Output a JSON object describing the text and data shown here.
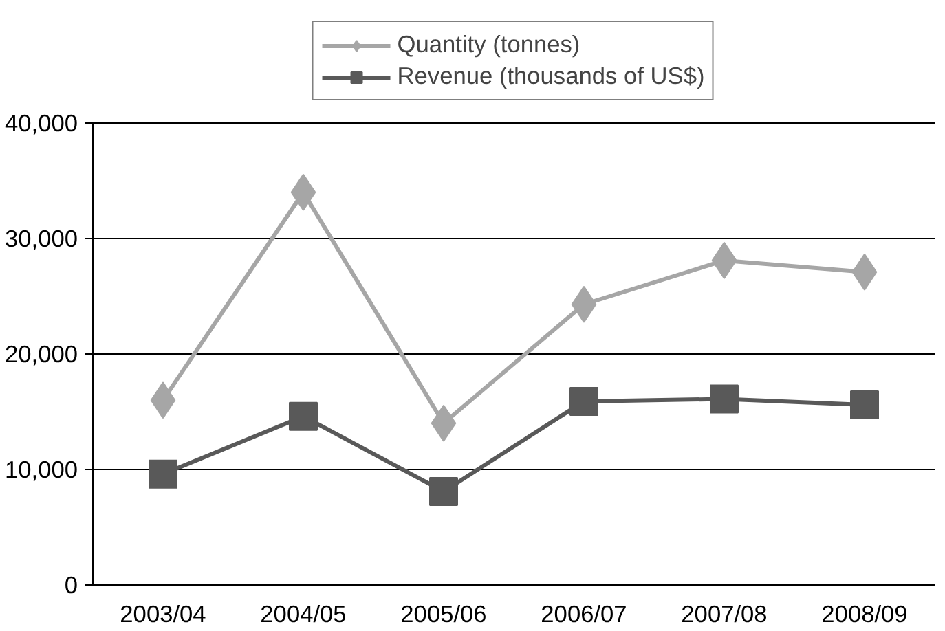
{
  "chart_data": {
    "type": "line",
    "categories": [
      "2003/04",
      "2004/05",
      "2005/06",
      "2006/07",
      "2007/08",
      "2008/09"
    ],
    "series": [
      {
        "name": "Quantity (tonnes)",
        "color": "#a6a6a6",
        "marker": "diamond",
        "values": [
          16000,
          34000,
          14000,
          24300,
          28100,
          27100
        ]
      },
      {
        "name": "Revenue (thousands of US$)",
        "color": "#595959",
        "marker": "square",
        "values": [
          9600,
          14600,
          8100,
          15900,
          16100,
          15600
        ]
      }
    ],
    "ylim": [
      0,
      40000
    ],
    "yticks": [
      {
        "value": 0,
        "label": "0"
      },
      {
        "value": 10000,
        "label": "10,000"
      },
      {
        "value": 20000,
        "label": "20,000"
      },
      {
        "value": 30000,
        "label": "30,000"
      },
      {
        "value": 40000,
        "label": "40,000"
      }
    ],
    "grid": "y",
    "legend": "top",
    "line_style": "solid"
  }
}
